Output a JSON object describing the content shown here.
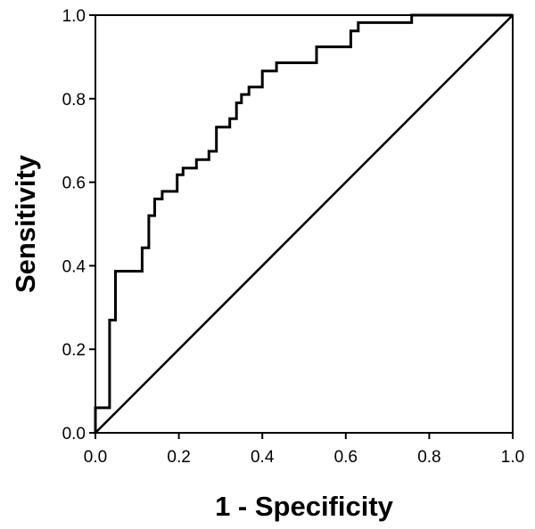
{
  "chart_data": {
    "type": "line",
    "title": "",
    "xlabel": "1 - Specificity",
    "ylabel": "Sensitivity",
    "xlim": [
      0.0,
      1.0
    ],
    "ylim": [
      0.0,
      1.0
    ],
    "grid": false,
    "legend": "none",
    "x_ticks": [
      "0.0",
      "0.2",
      "0.4",
      "0.6",
      "0.8",
      "1.0"
    ],
    "y_ticks": [
      "0.0",
      "0.2",
      "0.4",
      "0.6",
      "0.8",
      "1.0"
    ],
    "line_color": "#000000",
    "series": [
      {
        "style": "step",
        "x": [
          0.0,
          0.0,
          0.034,
          0.034,
          0.048,
          0.048,
          0.112,
          0.112,
          0.128,
          0.128,
          0.142,
          0.142,
          0.16,
          0.16,
          0.196,
          0.196,
          0.21,
          0.21,
          0.242,
          0.242,
          0.272,
          0.272,
          0.29,
          0.29,
          0.322,
          0.322,
          0.338,
          0.338,
          0.35,
          0.35,
          0.368,
          0.368,
          0.4,
          0.4,
          0.434,
          0.434,
          0.53,
          0.53,
          0.612,
          0.612,
          0.63,
          0.63,
          0.758,
          0.758,
          1.0
        ],
        "y": [
          0.0,
          0.06,
          0.06,
          0.27,
          0.27,
          0.387,
          0.387,
          0.443,
          0.443,
          0.52,
          0.52,
          0.56,
          0.56,
          0.578,
          0.578,
          0.618,
          0.618,
          0.634,
          0.634,
          0.654,
          0.654,
          0.674,
          0.674,
          0.732,
          0.732,
          0.752,
          0.752,
          0.79,
          0.79,
          0.81,
          0.81,
          0.828,
          0.828,
          0.866,
          0.866,
          0.886,
          0.886,
          0.924,
          0.924,
          0.962,
          0.962,
          0.982,
          0.982,
          1.0,
          1.0
        ]
      },
      {
        "style": "line",
        "x": [
          0.0,
          1.0
        ],
        "y": [
          0.0,
          1.0
        ]
      }
    ]
  }
}
